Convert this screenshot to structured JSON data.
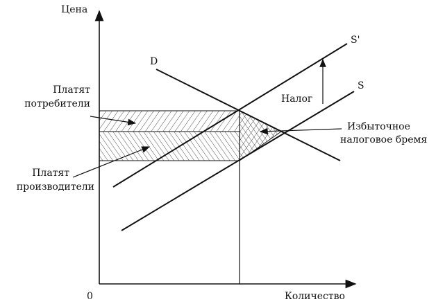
{
  "axes": {
    "y_label": "Цена",
    "x_label": "Количество",
    "origin": "0"
  },
  "curves": [
    {
      "label": "D"
    },
    {
      "label": "S'"
    },
    {
      "label": "S"
    }
  ],
  "tax": {
    "label": "Налог"
  },
  "consumers": {
    "lines": [
      "Платят",
      "потребители"
    ]
  },
  "producers": {
    "lines": [
      "Платят",
      "производители"
    ]
  },
  "deadweight": {
    "lines": [
      "Избыточное",
      "налоговое бремя"
    ]
  }
}
